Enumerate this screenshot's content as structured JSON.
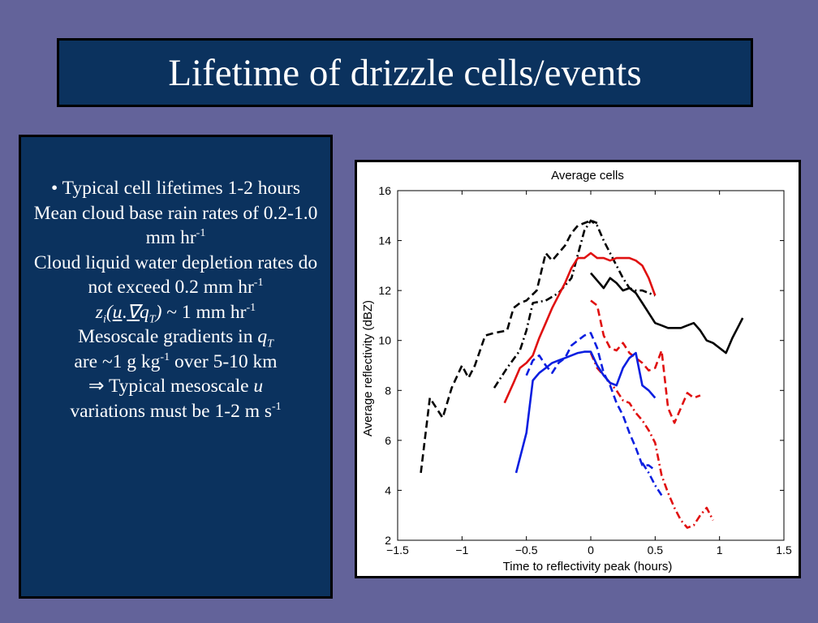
{
  "slide": {
    "title": "Lifetime of drizzle cells/events",
    "bullets": {
      "l1": "• Typical cell lifetimes 1-2 hours",
      "l2a": "Mean cloud base rain rates of  0.2-1.0 mm hr",
      "l2sup": "-1",
      "l3a": "Cloud liquid water depletion rates do not exceed 0.2 mm hr",
      "l3sup": "-1",
      "l4_z": "z",
      "l4_i": "i",
      "l4_paren": "(",
      "l4_u": "u",
      "l4_dot": ".",
      "l4_nabla": "∇",
      "l4_q": "q",
      "l4_T": "T",
      "l4_close": ")",
      "l4_rest": " ~ 1 mm hr",
      "l4sup": "-1",
      "l5a": "Mesoscale gradients in ",
      "l5_q": "q",
      "l5_T": "T",
      "l6a": "are ~1 g kg",
      "l6sup": "-1",
      "l6b": " over 5-10 km",
      "l7_arrow": "⇒",
      "l7a": " Typical mesoscale ",
      "l7_u": "u",
      "l8a": "variations must be 1-2 m s",
      "l8sup": "-1"
    }
  },
  "chart_data": {
    "type": "line",
    "title": "Average cells",
    "xlabel": "Time to reflectivity peak (hours)",
    "ylabel": "Average reflectivity (dBZ)",
    "xlim": [
      -1.5,
      1.5
    ],
    "ylim": [
      2,
      16
    ],
    "xticks": [
      -1.5,
      -1,
      -0.5,
      0,
      0.5,
      1,
      1.5
    ],
    "xticklabels": [
      "−1.5",
      "−1",
      "−0.5",
      "0",
      "0.5",
      "1",
      "1.5"
    ],
    "yticks": [
      2,
      4,
      6,
      8,
      10,
      12,
      14,
      16
    ],
    "yticklabels": [
      "2",
      "4",
      "6",
      "8",
      "10",
      "12",
      "14",
      "16"
    ],
    "grid": false,
    "series": [
      {
        "color": "#000000",
        "style": "dashed",
        "x": [
          -1.32,
          -1.25,
          -1.15,
          -1.08,
          -1.0,
          -0.95,
          -0.9,
          -0.82,
          -0.75,
          -0.65,
          -0.6,
          -0.55,
          -0.5,
          -0.42,
          -0.35,
          -0.3,
          -0.25,
          -0.2,
          -0.15,
          -0.1,
          -0.05,
          0.0,
          0.05
        ],
        "y": [
          4.7,
          7.7,
          6.9,
          8.1,
          9.0,
          8.5,
          9.0,
          10.2,
          10.3,
          10.4,
          11.3,
          11.5,
          11.6,
          12.0,
          13.5,
          13.2,
          13.5,
          13.8,
          14.3,
          14.6,
          14.7,
          14.8,
          14.7
        ]
      },
      {
        "color": "#000000",
        "style": "dashdot",
        "x": [
          -0.75,
          -0.65,
          -0.55,
          -0.5,
          -0.45,
          -0.35,
          -0.25,
          -0.15,
          -0.05,
          0.0,
          0.05,
          0.1,
          0.15,
          0.2,
          0.25,
          0.3,
          0.35,
          0.4,
          0.5
        ],
        "y": [
          8.1,
          8.9,
          9.6,
          10.4,
          11.5,
          11.6,
          11.9,
          12.5,
          14.4,
          14.8,
          14.6,
          14.0,
          13.5,
          13.0,
          12.5,
          12.1,
          12.0,
          12.0,
          11.8
        ]
      },
      {
        "color": "#000000",
        "style": "solid",
        "x": [
          0.0,
          0.05,
          0.1,
          0.15,
          0.2,
          0.25,
          0.3,
          0.35,
          0.4,
          0.45,
          0.5,
          0.55,
          0.6,
          0.65,
          0.7,
          0.75,
          0.8,
          0.85,
          0.9,
          0.95,
          1.0,
          1.05,
          1.1,
          1.15,
          1.18
        ],
        "y": [
          12.7,
          12.4,
          12.1,
          12.5,
          12.3,
          12.0,
          12.1,
          11.9,
          11.5,
          11.1,
          10.7,
          10.6,
          10.5,
          10.5,
          10.5,
          10.6,
          10.7,
          10.4,
          10.0,
          9.9,
          9.7,
          9.5,
          10.1,
          10.6,
          10.9
        ]
      },
      {
        "color": "#e01010",
        "style": "solid",
        "x": [
          -0.67,
          -0.6,
          -0.55,
          -0.5,
          -0.45,
          -0.4,
          -0.35,
          -0.3,
          -0.25,
          -0.2,
          -0.15,
          -0.1,
          -0.05,
          0.0,
          0.05,
          0.1,
          0.15,
          0.2,
          0.25,
          0.3,
          0.35,
          0.4,
          0.45,
          0.5
        ],
        "y": [
          7.5,
          8.3,
          8.9,
          9.1,
          9.4,
          10.1,
          10.7,
          11.3,
          11.8,
          12.3,
          12.9,
          13.3,
          13.3,
          13.5,
          13.3,
          13.3,
          13.2,
          13.3,
          13.3,
          13.3,
          13.2,
          13.0,
          12.5,
          11.8
        ]
      },
      {
        "color": "#e01010",
        "style": "dashed",
        "x": [
          0.0,
          0.05,
          0.1,
          0.15,
          0.2,
          0.25,
          0.3,
          0.35,
          0.4,
          0.45,
          0.5,
          0.55,
          0.6,
          0.65,
          0.7,
          0.75,
          0.8,
          0.85
        ],
        "y": [
          11.6,
          11.4,
          10.2,
          9.7,
          9.6,
          9.9,
          9.5,
          9.3,
          9.1,
          8.8,
          8.9,
          9.6,
          7.3,
          6.7,
          7.3,
          7.9,
          7.7,
          7.8
        ]
      },
      {
        "color": "#e01010",
        "style": "dashdot",
        "x": [
          0.0,
          0.05,
          0.1,
          0.15,
          0.2,
          0.25,
          0.3,
          0.35,
          0.4,
          0.45,
          0.5,
          0.55,
          0.6,
          0.65,
          0.7,
          0.75,
          0.8,
          0.85,
          0.9,
          0.95
        ],
        "y": [
          9.5,
          8.9,
          8.6,
          8.3,
          8.0,
          7.6,
          7.5,
          7.1,
          6.8,
          6.4,
          5.9,
          4.6,
          3.9,
          3.3,
          2.8,
          2.5,
          2.6,
          3.0,
          3.3,
          2.8
        ]
      },
      {
        "color": "#0a1ee0",
        "style": "solid",
        "x": [
          -0.58,
          -0.5,
          -0.45,
          -0.4,
          -0.35,
          -0.3,
          -0.25,
          -0.2,
          -0.15,
          -0.1,
          -0.05,
          0.0,
          0.05,
          0.1,
          0.15,
          0.2,
          0.25,
          0.3,
          0.35,
          0.4,
          0.45,
          0.5
        ],
        "y": [
          4.7,
          6.3,
          8.4,
          8.7,
          8.9,
          9.1,
          9.2,
          9.3,
          9.4,
          9.5,
          9.55,
          9.55,
          9.0,
          8.6,
          8.3,
          8.2,
          8.9,
          9.3,
          9.5,
          8.2,
          8.0,
          7.7
        ]
      },
      {
        "color": "#0a1ee0",
        "style": "dashed",
        "x": [
          -0.5,
          -0.45,
          -0.4,
          -0.35,
          -0.3,
          -0.25,
          -0.2,
          -0.15,
          -0.1,
          -0.05,
          0.0,
          0.05,
          0.1,
          0.15,
          0.2,
          0.25,
          0.3,
          0.35,
          0.4,
          0.45,
          0.5
        ],
        "y": [
          8.6,
          9.2,
          9.4,
          9.0,
          8.7,
          9.1,
          9.3,
          9.8,
          10.0,
          10.2,
          10.3,
          9.7,
          8.7,
          8.2,
          7.5,
          7.0,
          6.3,
          5.7,
          5.0,
          5.0,
          4.8
        ]
      },
      {
        "color": "#0a1ee0",
        "style": "dashdot",
        "x": [
          0.4,
          0.45,
          0.5,
          0.55
        ],
        "y": [
          5.1,
          4.7,
          4.2,
          3.8
        ]
      }
    ]
  }
}
